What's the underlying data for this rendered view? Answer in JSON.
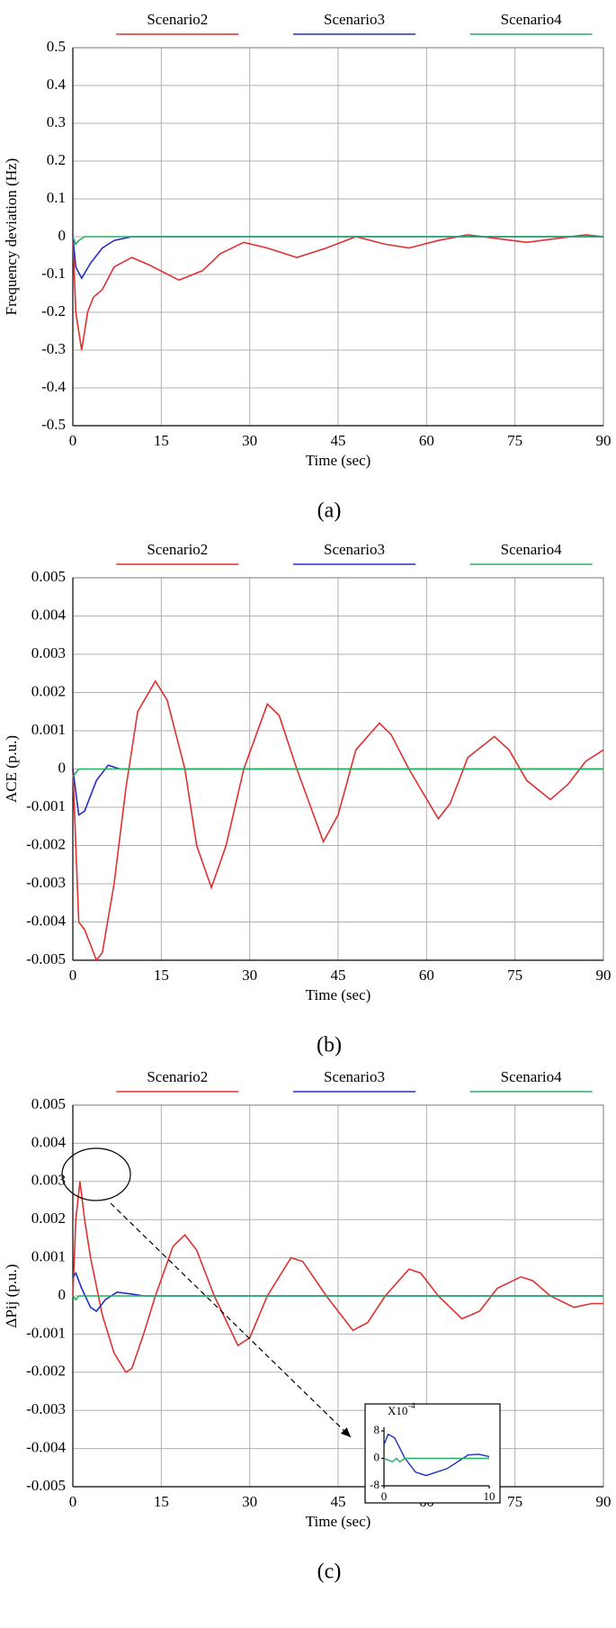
{
  "chart_data": [
    {
      "type": "line",
      "ylabel": "Frequency deviation (Hz)",
      "xlabel": "Time (sec)",
      "caption": "(a)",
      "xlim": [
        0,
        90
      ],
      "xticks": [
        0,
        15,
        30,
        45,
        60,
        75,
        90
      ],
      "ylim": [
        -0.5,
        0.5
      ],
      "yticks": [
        0.5,
        0.4,
        0.3,
        0.2,
        0.1,
        0,
        -0.1,
        -0.2,
        -0.3,
        -0.4,
        -0.5
      ],
      "grid": true,
      "series": [
        {
          "name": "Scenario2",
          "color": "#e03030",
          "x": [
            0,
            0.5,
            1.5,
            2.5,
            3.5,
            5,
            7,
            10,
            13,
            18,
            22,
            25,
            29,
            33,
            38,
            43,
            48,
            53,
            57,
            62,
            67,
            72,
            77,
            82,
            87,
            90
          ],
          "values": [
            0,
            -0.2,
            -0.3,
            -0.2,
            -0.16,
            -0.14,
            -0.08,
            -0.055,
            -0.075,
            -0.115,
            -0.09,
            -0.045,
            -0.015,
            -0.03,
            -0.055,
            -0.03,
            0,
            -0.02,
            -0.03,
            -0.01,
            0.005,
            -0.005,
            -0.015,
            -0.005,
            0.005,
            0
          ]
        },
        {
          "name": "Scenario3",
          "color": "#2030c0",
          "x": [
            0,
            0.5,
            1.5,
            3,
            5,
            7,
            10,
            90
          ],
          "values": [
            0,
            -0.08,
            -0.11,
            -0.07,
            -0.03,
            -0.01,
            0,
            0
          ]
        },
        {
          "name": "Scenario4",
          "color": "#20b060",
          "x": [
            0,
            0.5,
            1,
            2,
            90
          ],
          "values": [
            0,
            -0.02,
            -0.01,
            0,
            0
          ]
        }
      ]
    },
    {
      "type": "line",
      "ylabel": "ACE (p.u.)",
      "xlabel": "Time (sec)",
      "caption": "(b)",
      "xlim": [
        0,
        90
      ],
      "xticks": [
        0,
        15,
        30,
        45,
        60,
        75,
        90
      ],
      "ylim": [
        -0.005,
        0.005
      ],
      "yticks": [
        0.005,
        0.004,
        0.003,
        0.002,
        0.001,
        0,
        -0.001,
        -0.002,
        -0.003,
        -0.004,
        -0.005
      ],
      "grid": true,
      "series": [
        {
          "name": "Scenario2",
          "color": "#e03030",
          "x": [
            0,
            1,
            2,
            3,
            4,
            5,
            7,
            9,
            11,
            14,
            16,
            19,
            21,
            23.5,
            26,
            29,
            33,
            35,
            38,
            42.5,
            45,
            48,
            52,
            54,
            57,
            62,
            64,
            67,
            71.5,
            74,
            77,
            81,
            84,
            87,
            90
          ],
          "values": [
            0,
            -0.004,
            -0.0042,
            -0.0046,
            -0.005,
            -0.0048,
            -0.003,
            -0.0005,
            0.0015,
            0.0023,
            0.0018,
            0,
            -0.002,
            -0.0031,
            -0.002,
            0,
            0.0017,
            0.0014,
            0,
            -0.0019,
            -0.0012,
            0.0005,
            0.0012,
            0.0009,
            0,
            -0.0013,
            -0.0009,
            0.0003,
            0.00085,
            0.0005,
            -0.0003,
            -0.0008,
            -0.0004,
            0.0002,
            0.0005
          ]
        },
        {
          "name": "Scenario3",
          "color": "#2030c0",
          "x": [
            0,
            1,
            2,
            4,
            6,
            8,
            90
          ],
          "values": [
            0,
            -0.0012,
            -0.0011,
            -0.0003,
            0.0001,
            0,
            0
          ]
        },
        {
          "name": "Scenario4",
          "color": "#20b060",
          "x": [
            0,
            1,
            90
          ],
          "values": [
            -0.0002,
            0,
            0
          ]
        }
      ]
    },
    {
      "type": "line",
      "ylabel": "ΔPij (p.u.)",
      "xlabel": "Time (sec)",
      "caption": "(c)",
      "xlim": [
        0,
        90
      ],
      "xticks": [
        0,
        15,
        30,
        45,
        60,
        75,
        90
      ],
      "ylim": [
        -0.005,
        0.005
      ],
      "yticks": [
        0.005,
        0.004,
        0.003,
        0.002,
        0.001,
        0,
        -0.001,
        -0.002,
        -0.003,
        -0.004,
        -0.005
      ],
      "grid": true,
      "series": [
        {
          "name": "Scenario2",
          "color": "#e03030",
          "x": [
            0,
            0.5,
            1.2,
            2,
            3,
            5,
            7,
            9,
            10,
            12,
            14,
            17,
            19,
            21,
            24,
            28,
            30,
            33,
            37,
            39,
            43,
            47.5,
            50,
            53,
            57,
            59,
            62,
            66,
            69,
            72,
            76,
            78,
            81,
            85,
            88,
            90
          ],
          "values": [
            0,
            0.002,
            0.003,
            0.002,
            0.001,
            -0.0005,
            -0.0015,
            -0.002,
            -0.0019,
            -0.001,
            0,
            0.0013,
            0.0016,
            0.0012,
            0,
            -0.0013,
            -0.0011,
            0,
            0.001,
            0.0009,
            0,
            -0.0009,
            -0.0007,
            0,
            0.0007,
            0.0006,
            0,
            -0.0006,
            -0.0004,
            0.0002,
            0.0005,
            0.0004,
            0,
            -0.0003,
            -0.0002,
            -0.0002
          ]
        },
        {
          "name": "Scenario3",
          "color": "#2030c0",
          "x": [
            0,
            0.5,
            1.5,
            3,
            4,
            5.5,
            7.5,
            10,
            12,
            90
          ],
          "values": [
            0.0005,
            0.0006,
            0.0002,
            -0.0003,
            -0.0004,
            -0.0001,
            0.0001,
            5e-05,
            0,
            0
          ]
        },
        {
          "name": "Scenario4",
          "color": "#20b060",
          "x": [
            0,
            0.5,
            1,
            90
          ],
          "values": [
            0,
            -0.0001,
            0,
            0
          ]
        }
      ],
      "inset": {
        "scale_label": "X10",
        "scale_exponent": "-4",
        "xlim": [
          0,
          10
        ],
        "xticks": [
          0,
          10
        ],
        "ylim": [
          -8,
          8
        ],
        "yticks": [
          8,
          0,
          -8
        ],
        "series": [
          {
            "color": "#2030c0",
            "x": [
              0,
              0.4,
              1,
              2,
              3,
              4,
              6,
              8,
              9,
              10
            ],
            "values": [
              4,
              7,
              6,
              0,
              -4,
              -5,
              -3,
              1,
              1.2,
              0.5
            ]
          },
          {
            "color": "#20b060",
            "x": [
              0,
              0.8,
              1.2,
              1.5,
              2,
              10
            ],
            "values": [
              0,
              -1,
              0,
              -1,
              0,
              0
            ]
          }
        ]
      }
    }
  ]
}
